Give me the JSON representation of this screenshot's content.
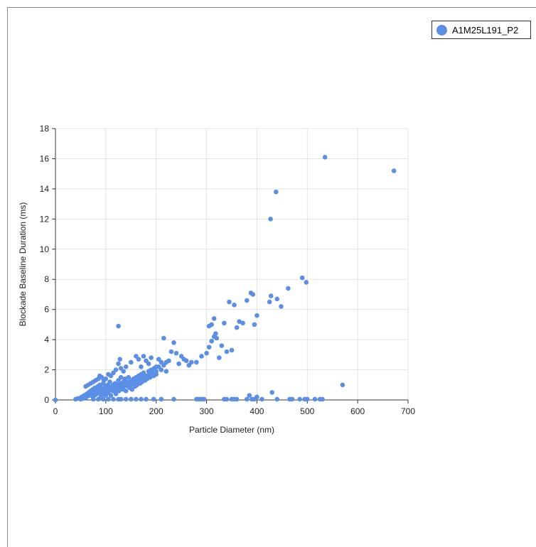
{
  "chart_data": {
    "type": "scatter",
    "xlabel": "Particle Diameter (nm)",
    "ylabel": "Blockade Baseline Duration (ms)",
    "xlim": [
      0,
      700
    ],
    "ylim": [
      0,
      18
    ],
    "xticks": [
      "0",
      "100",
      "200",
      "300",
      "400",
      "500",
      "600",
      "700"
    ],
    "yticks": [
      "0",
      "2",
      "4",
      "6",
      "8",
      "10",
      "12",
      "14",
      "16",
      "18"
    ],
    "grid": true,
    "legend_position": "top-right",
    "series": [
      {
        "name": "A1M25L191_P2",
        "color": "#5b8ee6",
        "points": [
          [
            0,
            0
          ],
          [
            40,
            0.05
          ],
          [
            45,
            0.1
          ],
          [
            50,
            0.05
          ],
          [
            52,
            0.2
          ],
          [
            55,
            0.1
          ],
          [
            57,
            0.3
          ],
          [
            60,
            0.15
          ],
          [
            62,
            0.4
          ],
          [
            64,
            0.25
          ],
          [
            66,
            0.5
          ],
          [
            68,
            0.3
          ],
          [
            70,
            0.6
          ],
          [
            72,
            0.4
          ],
          [
            74,
            0.7
          ],
          [
            75,
            0.2
          ],
          [
            76,
            0.5
          ],
          [
            78,
            0.8
          ],
          [
            80,
            0.35
          ],
          [
            82,
            0.6
          ],
          [
            84,
            0.9
          ],
          [
            85,
            0.45
          ],
          [
            86,
            0.7
          ],
          [
            88,
            1.0
          ],
          [
            90,
            0.5
          ],
          [
            90,
            0.2
          ],
          [
            92,
            0.8
          ],
          [
            94,
            0.6
          ],
          [
            95,
            1.1
          ],
          [
            96,
            0.4
          ],
          [
            98,
            0.7
          ],
          [
            100,
            0.9
          ],
          [
            100,
            0.3
          ],
          [
            102,
            0.6
          ],
          [
            104,
            1.0
          ],
          [
            105,
            0.5
          ],
          [
            106,
            0.8
          ],
          [
            108,
            1.2
          ],
          [
            110,
            0.7
          ],
          [
            110,
            0.3
          ],
          [
            112,
            0.9
          ],
          [
            114,
            0.6
          ],
          [
            115,
            1.0
          ],
          [
            116,
            0.8
          ],
          [
            118,
            1.1
          ],
          [
            120,
            0.7
          ],
          [
            120,
            0.4
          ],
          [
            122,
            1.0
          ],
          [
            124,
            0.9
          ],
          [
            125,
            1.3
          ],
          [
            126,
            0.6
          ],
          [
            128,
            1.1
          ],
          [
            130,
            0.8
          ],
          [
            130,
            1.5
          ],
          [
            132,
            1.0
          ],
          [
            134,
            0.7
          ],
          [
            135,
            1.2
          ],
          [
            136,
            0.9
          ],
          [
            138,
            1.4
          ],
          [
            140,
            1.0
          ],
          [
            140,
            0.6
          ],
          [
            142,
            1.2
          ],
          [
            144,
            0.9
          ],
          [
            145,
            1.5
          ],
          [
            146,
            1.1
          ],
          [
            148,
            0.8
          ],
          [
            150,
            1.3
          ],
          [
            150,
            1.0
          ],
          [
            152,
            0.7
          ],
          [
            155,
            1.4
          ],
          [
            156,
            1.1
          ],
          [
            158,
            0.9
          ],
          [
            160,
            1.5
          ],
          [
            160,
            1.2
          ],
          [
            162,
            1.0
          ],
          [
            165,
            1.6
          ],
          [
            166,
            1.3
          ],
          [
            168,
            1.1
          ],
          [
            170,
            1.7
          ],
          [
            170,
            1.4
          ],
          [
            172,
            1.2
          ],
          [
            175,
            1.8
          ],
          [
            176,
            1.5
          ],
          [
            178,
            1.3
          ],
          [
            180,
            1.6
          ],
          [
            182,
            1.4
          ],
          [
            185,
            1.9
          ],
          [
            186,
            1.7
          ],
          [
            188,
            1.5
          ],
          [
            190,
            2.0
          ],
          [
            192,
            1.8
          ],
          [
            195,
            1.6
          ],
          [
            196,
            2.1
          ],
          [
            200,
            1.9
          ],
          [
            200,
            1.7
          ],
          [
            205,
            2.2
          ],
          [
            210,
            2.0
          ],
          [
            215,
            2.3
          ],
          [
            220,
            1.9
          ],
          [
            220,
            2.5
          ],
          [
            60,
            0.9
          ],
          [
            65,
            1.0
          ],
          [
            70,
            1.1
          ],
          [
            75,
            1.2
          ],
          [
            80,
            1.3
          ],
          [
            85,
            1.4
          ],
          [
            88,
            1.6
          ],
          [
            92,
            1.5
          ],
          [
            96,
            1.3
          ],
          [
            100,
            1.4
          ],
          [
            105,
            1.7
          ],
          [
            110,
            1.6
          ],
          [
            115,
            1.8
          ],
          [
            120,
            2.0
          ],
          [
            125,
            2.4
          ],
          [
            128,
            2.7
          ],
          [
            130,
            2.1
          ],
          [
            135,
            1.9
          ],
          [
            140,
            2.2
          ],
          [
            150,
            2.5
          ],
          [
            160,
            2.9
          ],
          [
            165,
            2.7
          ],
          [
            170,
            2.2
          ],
          [
            175,
            2.9
          ],
          [
            180,
            2.6
          ],
          [
            185,
            2.4
          ],
          [
            190,
            2.8
          ],
          [
            200,
            2.2
          ],
          [
            205,
            2.7
          ],
          [
            210,
            2.5
          ],
          [
            215,
            4.1
          ],
          [
            225,
            2.6
          ],
          [
            230,
            3.2
          ],
          [
            235,
            3.8
          ],
          [
            240,
            3.1
          ],
          [
            245,
            2.4
          ],
          [
            250,
            2.9
          ],
          [
            255,
            2.7
          ],
          [
            260,
            2.6
          ],
          [
            265,
            2.3
          ],
          [
            270,
            2.5
          ],
          [
            280,
            2.5
          ],
          [
            290,
            2.9
          ],
          [
            300,
            3.1
          ],
          [
            305,
            3.5
          ],
          [
            310,
            3.9
          ],
          [
            315,
            4.2
          ],
          [
            318,
            4.4
          ],
          [
            320,
            4.1
          ],
          [
            325,
            2.8
          ],
          [
            330,
            3.6
          ],
          [
            335,
            5.1
          ],
          [
            340,
            3.2
          ],
          [
            345,
            6.5
          ],
          [
            350,
            3.3
          ],
          [
            355,
            6.3
          ],
          [
            360,
            4.8
          ],
          [
            365,
            5.2
          ],
          [
            372,
            5.1
          ],
          [
            380,
            6.6
          ],
          [
            388,
            7.1
          ],
          [
            392,
            7.0
          ],
          [
            395,
            5.0
          ],
          [
            400,
            5.6
          ],
          [
            425,
            6.5
          ],
          [
            428,
            6.9
          ],
          [
            440,
            6.7
          ],
          [
            448,
            6.2
          ],
          [
            462,
            7.4
          ],
          [
            490,
            8.1
          ],
          [
            498,
            7.8
          ],
          [
            305,
            4.9
          ],
          [
            315,
            5.4
          ],
          [
            125,
            4.9
          ],
          [
            310,
            5.0
          ],
          [
            427,
            12.0
          ],
          [
            438,
            13.8
          ],
          [
            535,
            16.1
          ],
          [
            672,
            15.2
          ],
          [
            570,
            1.0
          ],
          [
            75,
            0.05
          ],
          [
            85,
            0.05
          ],
          [
            95,
            0.05
          ],
          [
            105,
            0.05
          ],
          [
            115,
            0.05
          ],
          [
            125,
            0.05
          ],
          [
            130,
            0.05
          ],
          [
            140,
            0.05
          ],
          [
            150,
            0.05
          ],
          [
            160,
            0.05
          ],
          [
            170,
            0.05
          ],
          [
            180,
            0.05
          ],
          [
            195,
            0.05
          ],
          [
            210,
            0.05
          ],
          [
            235,
            0.05
          ],
          [
            280,
            0.05
          ],
          [
            285,
            0.05
          ],
          [
            290,
            0.05
          ],
          [
            295,
            0.05
          ],
          [
            335,
            0.05
          ],
          [
            340,
            0.05
          ],
          [
            350,
            0.05
          ],
          [
            355,
            0.05
          ],
          [
            360,
            0.05
          ],
          [
            380,
            0.05
          ],
          [
            385,
            0.3
          ],
          [
            390,
            0.05
          ],
          [
            395,
            0.05
          ],
          [
            400,
            0.2
          ],
          [
            410,
            0.05
          ],
          [
            430,
            0.5
          ],
          [
            440,
            0.05
          ],
          [
            465,
            0.05
          ],
          [
            470,
            0.05
          ],
          [
            485,
            0.05
          ],
          [
            495,
            0.05
          ],
          [
            500,
            0.05
          ],
          [
            515,
            0.05
          ],
          [
            525,
            0.05
          ],
          [
            530,
            0.05
          ]
        ]
      }
    ]
  }
}
